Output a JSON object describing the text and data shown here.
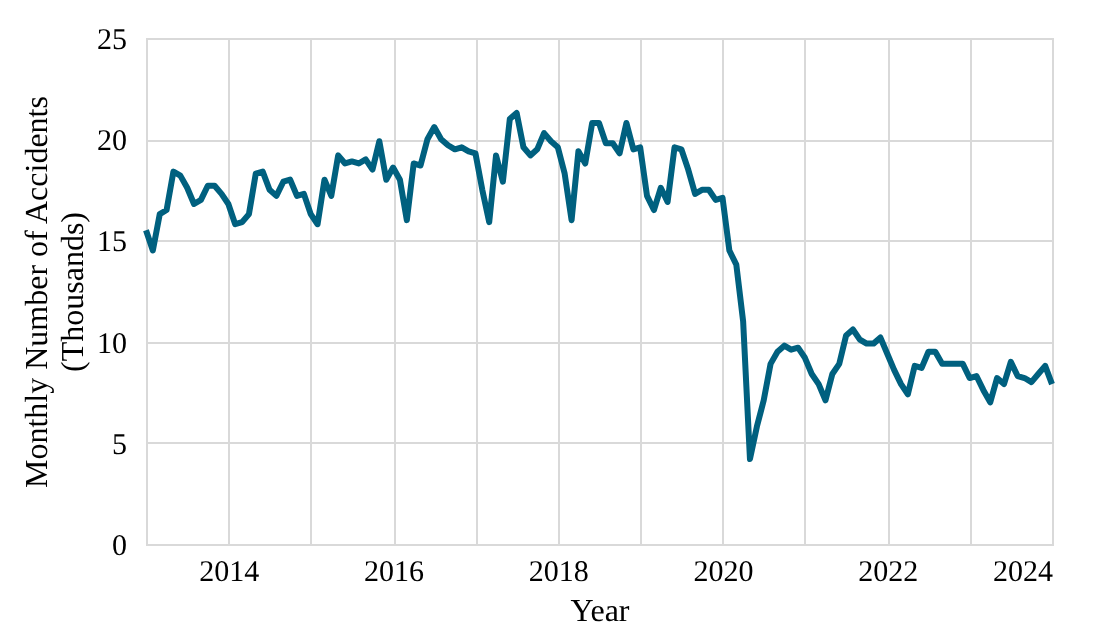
{
  "chart_data": {
    "type": "line",
    "xlabel": "Year",
    "ylabel": "Monthly Number of Accidents\n(Thousands)",
    "x": [
      2013,
      2013.083,
      2013.167,
      2013.25,
      2013.333,
      2013.417,
      2013.5,
      2013.583,
      2013.667,
      2013.75,
      2013.833,
      2013.917,
      2014,
      2014.083,
      2014.167,
      2014.25,
      2014.333,
      2014.417,
      2014.5,
      2014.583,
      2014.667,
      2014.75,
      2014.833,
      2014.917,
      2015,
      2015.083,
      2015.167,
      2015.25,
      2015.333,
      2015.417,
      2015.5,
      2015.583,
      2015.667,
      2015.75,
      2015.833,
      2015.917,
      2016,
      2016.083,
      2016.167,
      2016.25,
      2016.333,
      2016.417,
      2016.5,
      2016.583,
      2016.667,
      2016.75,
      2016.833,
      2016.917,
      2017,
      2017.083,
      2017.167,
      2017.25,
      2017.333,
      2017.417,
      2017.5,
      2017.583,
      2017.667,
      2017.75,
      2017.833,
      2017.917,
      2018,
      2018.083,
      2018.167,
      2018.25,
      2018.333,
      2018.417,
      2018.5,
      2018.583,
      2018.667,
      2018.75,
      2018.833,
      2018.917,
      2019,
      2019.083,
      2019.167,
      2019.25,
      2019.333,
      2019.417,
      2019.5,
      2019.583,
      2019.667,
      2019.75,
      2019.833,
      2019.917,
      2020,
      2020.083,
      2020.167,
      2020.25,
      2020.333,
      2020.417,
      2020.5,
      2020.583,
      2020.667,
      2020.75,
      2020.833,
      2020.917,
      2021,
      2021.083,
      2021.167,
      2021.25,
      2021.333,
      2021.417,
      2021.5,
      2021.583,
      2021.667,
      2021.75,
      2021.833,
      2021.917,
      2022,
      2022.083,
      2022.167,
      2022.25,
      2022.333,
      2022.417,
      2022.5,
      2022.583,
      2022.667,
      2022.75,
      2022.833,
      2022.917,
      2023,
      2023.083,
      2023.167,
      2023.25,
      2023.333,
      2023.417,
      2023.5,
      2023.583,
      2023.667,
      2023.75,
      2023.833,
      2023.917,
      2024
    ],
    "series": [
      {
        "color": "#00607f",
        "values": [
          15.5,
          14.5,
          16.3,
          16.5,
          18.4,
          18.2,
          17.6,
          16.8,
          17.0,
          17.7,
          17.7,
          17.3,
          16.8,
          15.8,
          15.9,
          16.3,
          18.3,
          18.4,
          17.5,
          17.2,
          17.9,
          18.0,
          17.2,
          17.3,
          16.3,
          15.8,
          18.0,
          17.2,
          19.2,
          18.8,
          18.9,
          18.8,
          19.0,
          18.5,
          19.9,
          18.0,
          18.6,
          18.0,
          16.0,
          18.8,
          18.7,
          20.0,
          20.6,
          20.0,
          19.7,
          19.5,
          19.6,
          19.4,
          19.3,
          17.5,
          15.9,
          19.2,
          17.9,
          21.0,
          21.3,
          19.6,
          19.2,
          19.5,
          20.3,
          19.9,
          19.6,
          18.3,
          16.0,
          19.4,
          18.8,
          20.8,
          20.8,
          19.8,
          19.8,
          19.3,
          20.8,
          19.5,
          19.6,
          17.2,
          16.5,
          17.6,
          16.9,
          19.6,
          19.5,
          18.5,
          17.3,
          17.5,
          17.5,
          17.0,
          17.1,
          14.5,
          13.8,
          11.0,
          4.2,
          5.8,
          7.1,
          8.9,
          9.5,
          9.8,
          9.6,
          9.7,
          9.2,
          8.4,
          7.9,
          7.1,
          8.4,
          8.9,
          10.3,
          10.6,
          10.1,
          9.9,
          9.9,
          10.2,
          9.4,
          8.6,
          7.9,
          7.4,
          8.8,
          8.7,
          9.5,
          9.5,
          8.9,
          8.9,
          8.9,
          8.9,
          8.2,
          8.3,
          7.6,
          7.0,
          8.2,
          7.9,
          9.0,
          8.3,
          8.2,
          8.0,
          8.4,
          8.8,
          7.9
        ]
      }
    ],
    "xlim": [
      2013,
      2024
    ],
    "xticks": [
      {
        "value": 2013,
        "label": null
      },
      2014,
      {
        "value": 2015,
        "label": null
      },
      2016,
      {
        "value": 2017,
        "label": null
      },
      2018,
      {
        "value": 2019,
        "label": null
      },
      2020,
      {
        "value": 2021,
        "label": null
      },
      2022,
      {
        "value": 2023,
        "label": null
      },
      2024
    ],
    "ylim": [
      0,
      25
    ],
    "yticks": [
      0,
      5,
      10,
      15,
      20,
      25
    ],
    "grid": true,
    "marker": "none",
    "line_style": "solid"
  }
}
